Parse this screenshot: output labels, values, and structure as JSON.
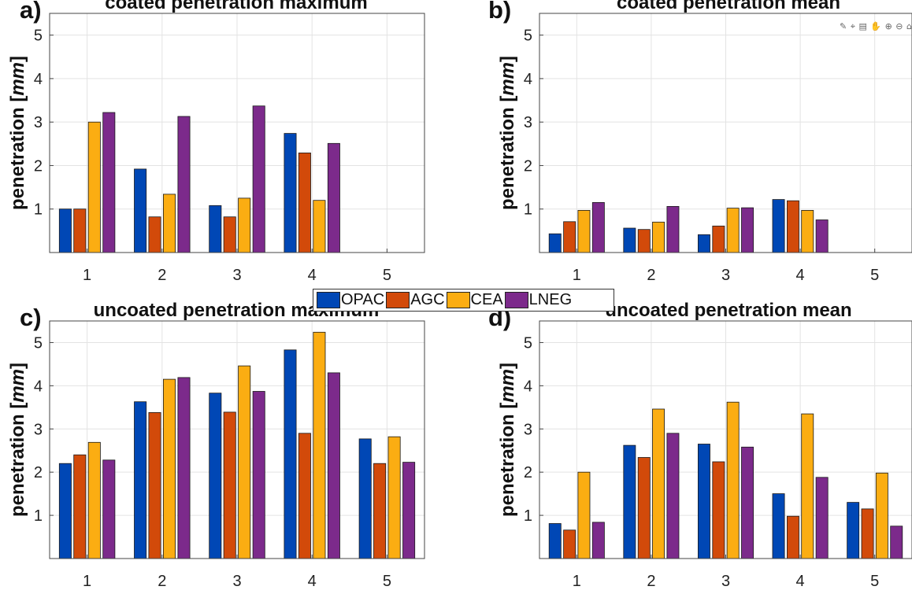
{
  "figure": {
    "colors": {
      "OPAC": "#0047B5",
      "AGC": "#D24A0A",
      "CEA": "#FBAD12",
      "LNEG": "#7C2A8B",
      "grid": "#e3e3e3",
      "axis": "#444444"
    },
    "toolbar_icons": [
      "brush-icon",
      "data-tip-icon",
      "export-icon",
      "pan-icon",
      "zoom-in-icon",
      "zoom-out-icon",
      "home-icon"
    ]
  },
  "legend": {
    "entries": [
      {
        "label": "OPAC",
        "color": "#0047B5"
      },
      {
        "label": "AGC",
        "color": "#D24A0A"
      },
      {
        "label": "CEA",
        "color": "#FBAD12"
      },
      {
        "label": "LNEG",
        "color": "#7C2A8B"
      }
    ]
  },
  "chart_data": [
    {
      "type": "bar",
      "panel_label": "a)",
      "title": "coated penetration maximum",
      "ylabel": "penetration [mm]",
      "ylabel_plain": "penetration ",
      "ylabel_unit": "mm",
      "categories": [
        "1",
        "2",
        "3",
        "4",
        "5"
      ],
      "yticks": [
        1,
        2,
        3,
        4,
        5
      ],
      "ylim": [
        0,
        5.5
      ],
      "grid": true,
      "series": [
        {
          "name": "OPAC",
          "values": [
            1.0,
            1.92,
            1.08,
            2.74,
            null
          ]
        },
        {
          "name": "AGC",
          "values": [
            1.0,
            0.82,
            0.82,
            2.29,
            null
          ]
        },
        {
          "name": "CEA",
          "values": [
            3.0,
            1.34,
            1.25,
            1.2,
            null
          ]
        },
        {
          "name": "LNEG",
          "values": [
            3.22,
            3.13,
            3.37,
            2.51,
            null
          ]
        }
      ]
    },
    {
      "type": "bar",
      "panel_label": "b)",
      "title": "coated penetration mean",
      "ylabel": "penetration [mm]",
      "ylabel_plain": "penetration ",
      "ylabel_unit": "mm",
      "categories": [
        "1",
        "2",
        "3",
        "4",
        "5"
      ],
      "yticks": [
        1,
        2,
        3,
        4,
        5
      ],
      "ylim": [
        0,
        5.5
      ],
      "grid": true,
      "series": [
        {
          "name": "OPAC",
          "values": [
            0.43,
            0.56,
            0.41,
            1.22,
            null
          ]
        },
        {
          "name": "AGC",
          "values": [
            0.71,
            0.53,
            0.61,
            1.19,
            null
          ]
        },
        {
          "name": "CEA",
          "values": [
            0.97,
            0.7,
            1.02,
            0.97,
            null
          ]
        },
        {
          "name": "LNEG",
          "values": [
            1.15,
            1.06,
            1.03,
            0.75,
            null
          ]
        }
      ]
    },
    {
      "type": "bar",
      "panel_label": "c)",
      "title": "uncoated penetration maximum",
      "ylabel": "penetration [mm]",
      "ylabel_plain": "penetration ",
      "ylabel_unit": "mm",
      "categories": [
        "1",
        "2",
        "3",
        "4",
        "5"
      ],
      "yticks": [
        1,
        2,
        3,
        4,
        5
      ],
      "ylim": [
        0,
        5.5
      ],
      "grid": true,
      "series": [
        {
          "name": "OPAC",
          "values": [
            2.2,
            3.63,
            3.83,
            4.83,
            2.77
          ]
        },
        {
          "name": "AGC",
          "values": [
            2.4,
            3.38,
            3.39,
            2.9,
            2.2
          ]
        },
        {
          "name": "CEA",
          "values": [
            2.69,
            4.15,
            4.46,
            5.24,
            2.82
          ]
        },
        {
          "name": "LNEG",
          "values": [
            2.28,
            4.19,
            3.87,
            4.3,
            2.23
          ]
        }
      ]
    },
    {
      "type": "bar",
      "panel_label": "d)",
      "title": "uncoated penetration mean",
      "ylabel": "penetration [mm]",
      "ylabel_plain": "penetration ",
      "ylabel_unit": "mm",
      "categories": [
        "1",
        "2",
        "3",
        "4",
        "5"
      ],
      "yticks": [
        1,
        2,
        3,
        4,
        5
      ],
      "ylim": [
        0,
        5.5
      ],
      "grid": true,
      "series": [
        {
          "name": "OPAC",
          "values": [
            0.81,
            2.62,
            2.65,
            1.5,
            1.3
          ]
        },
        {
          "name": "AGC",
          "values": [
            0.66,
            2.34,
            2.24,
            0.98,
            1.15
          ]
        },
        {
          "name": "CEA",
          "values": [
            2.0,
            3.46,
            3.62,
            3.35,
            1.98
          ]
        },
        {
          "name": "LNEG",
          "values": [
            0.84,
            2.9,
            2.58,
            1.88,
            0.75
          ]
        }
      ]
    }
  ]
}
